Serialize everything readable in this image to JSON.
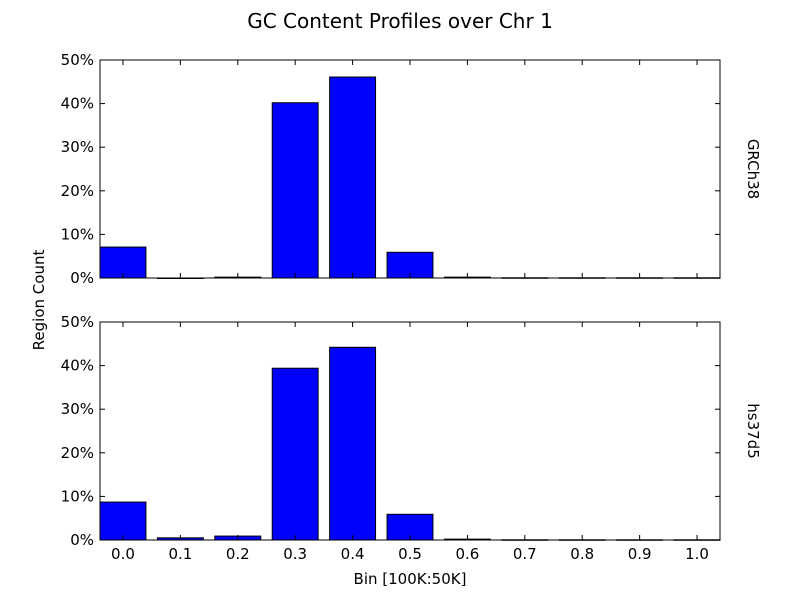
{
  "chart_data": {
    "title": "GC Content Profiles over Chr 1",
    "type": "bar",
    "xlabel": "Bin [100K:50K]",
    "ylabel": "Region Count",
    "bar_color": "#0000ff",
    "edge_color": "#000000",
    "grid": false,
    "ylim": [
      0,
      50
    ],
    "y_ticks": [
      "0%",
      "10%",
      "20%",
      "30%",
      "40%",
      "50%"
    ],
    "categories": [
      "0.0",
      "0.1",
      "0.2",
      "0.3",
      "0.4",
      "0.5",
      "0.6",
      "0.7",
      "0.8",
      "0.9",
      "1.0"
    ],
    "panels": [
      {
        "label": "GRCh38",
        "values": [
          7.1,
          0.0,
          0.2,
          40.2,
          46.1,
          5.9,
          0.2,
          0.05,
          0.05,
          0.05,
          0.05
        ]
      },
      {
        "label": "hs37d5",
        "values": [
          8.7,
          0.5,
          0.9,
          39.4,
          44.2,
          5.9,
          0.2,
          0.05,
          0.05,
          0.05,
          0.05
        ]
      }
    ]
  }
}
